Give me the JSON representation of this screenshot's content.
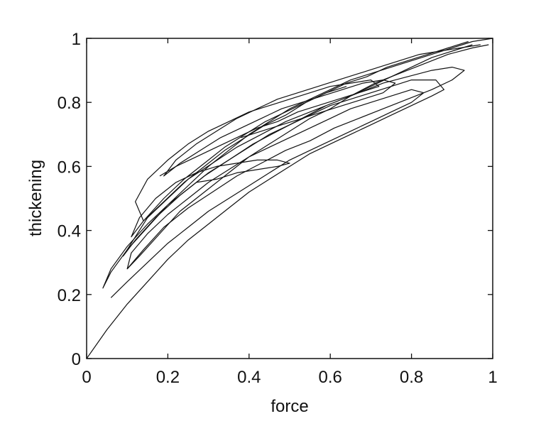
{
  "chart_data": {
    "type": "line",
    "title": "",
    "xlabel": "force",
    "ylabel": "thickening",
    "xlim": [
      0,
      1
    ],
    "ylim": [
      0,
      1
    ],
    "xticks": [
      0,
      0.2,
      0.4,
      0.6,
      0.8,
      1
    ],
    "yticks": [
      0,
      0.2,
      0.4,
      0.6,
      0.8,
      1
    ],
    "xtick_labels": [
      "0",
      "0.2",
      "0.4",
      "0.6",
      "0.8",
      "1"
    ],
    "ytick_labels": [
      "0",
      "0.2",
      "0.4",
      "0.6",
      "0.8",
      "1"
    ],
    "grid": false,
    "legend": "none",
    "line_color": "#111111",
    "series": [
      {
        "x": [
          0.0,
          0.05,
          0.1,
          0.15,
          0.2,
          0.25,
          0.3,
          0.35,
          0.4,
          0.45,
          0.5,
          0.55,
          0.6,
          0.65,
          0.7,
          0.75,
          0.8,
          0.85,
          0.88,
          0.86,
          0.8,
          0.75,
          0.7,
          0.65,
          0.6,
          0.55,
          0.5,
          0.45,
          0.4,
          0.35,
          0.3,
          0.25,
          0.2,
          0.15,
          0.1,
          0.06,
          0.04,
          0.06,
          0.1,
          0.15,
          0.2,
          0.25,
          0.3,
          0.35,
          0.4,
          0.45,
          0.5,
          0.55,
          0.6,
          0.65,
          0.7,
          0.75,
          0.8,
          0.85,
          0.9,
          0.95,
          1.0
        ],
        "y": [
          0.0,
          0.09,
          0.17,
          0.24,
          0.31,
          0.37,
          0.42,
          0.47,
          0.52,
          0.56,
          0.6,
          0.64,
          0.67,
          0.7,
          0.73,
          0.76,
          0.79,
          0.82,
          0.84,
          0.87,
          0.87,
          0.85,
          0.83,
          0.81,
          0.79,
          0.76,
          0.73,
          0.7,
          0.66,
          0.62,
          0.58,
          0.53,
          0.48,
          0.42,
          0.35,
          0.28,
          0.22,
          0.27,
          0.34,
          0.41,
          0.48,
          0.54,
          0.6,
          0.65,
          0.7,
          0.74,
          0.78,
          0.81,
          0.84,
          0.87,
          0.89,
          0.91,
          0.93,
          0.95,
          0.97,
          0.99,
          1.0
        ]
      },
      {
        "x": [
          0.06,
          0.1,
          0.15,
          0.2,
          0.25,
          0.3,
          0.35,
          0.4,
          0.45,
          0.5,
          0.55,
          0.6,
          0.65,
          0.7,
          0.75,
          0.8,
          0.83,
          0.8,
          0.75,
          0.7,
          0.65,
          0.6,
          0.55,
          0.5,
          0.45,
          0.4,
          0.35,
          0.3,
          0.25,
          0.2,
          0.15,
          0.11,
          0.1,
          0.13,
          0.18,
          0.23,
          0.3,
          0.35,
          0.4,
          0.45,
          0.5,
          0.55,
          0.6,
          0.65,
          0.7,
          0.75,
          0.8,
          0.85,
          0.9,
          0.95
        ],
        "y": [
          0.19,
          0.24,
          0.3,
          0.36,
          0.41,
          0.46,
          0.5,
          0.54,
          0.58,
          0.62,
          0.65,
          0.68,
          0.71,
          0.74,
          0.77,
          0.8,
          0.83,
          0.84,
          0.82,
          0.8,
          0.78,
          0.75,
          0.72,
          0.69,
          0.66,
          0.63,
          0.59,
          0.55,
          0.5,
          0.45,
          0.39,
          0.33,
          0.28,
          0.32,
          0.39,
          0.46,
          0.53,
          0.58,
          0.63,
          0.67,
          0.71,
          0.75,
          0.78,
          0.82,
          0.85,
          0.88,
          0.91,
          0.94,
          0.96,
          0.98
        ]
      },
      {
        "x": [
          0.1,
          0.14,
          0.19,
          0.25,
          0.31,
          0.37,
          0.43,
          0.49,
          0.55,
          0.61,
          0.67,
          0.73,
          0.79,
          0.85,
          0.9,
          0.93,
          0.9,
          0.85,
          0.79,
          0.73,
          0.67,
          0.61,
          0.55,
          0.49,
          0.43,
          0.37,
          0.31,
          0.25,
          0.2,
          0.15,
          0.12,
          0.09,
          0.12,
          0.17,
          0.23,
          0.29,
          0.35,
          0.41,
          0.47,
          0.53,
          0.59,
          0.65,
          0.71,
          0.77,
          0.83,
          0.89,
          0.95,
          0.99
        ],
        "y": [
          0.28,
          0.34,
          0.41,
          0.47,
          0.52,
          0.57,
          0.61,
          0.65,
          0.68,
          0.72,
          0.75,
          0.78,
          0.81,
          0.84,
          0.87,
          0.9,
          0.91,
          0.9,
          0.88,
          0.86,
          0.83,
          0.8,
          0.77,
          0.74,
          0.7,
          0.66,
          0.61,
          0.56,
          0.5,
          0.44,
          0.38,
          0.32,
          0.37,
          0.44,
          0.51,
          0.57,
          0.62,
          0.67,
          0.71,
          0.75,
          0.79,
          0.82,
          0.86,
          0.89,
          0.92,
          0.95,
          0.97,
          0.98
        ]
      },
      {
        "x": [
          0.18,
          0.22,
          0.27,
          0.32,
          0.37,
          0.42,
          0.47,
          0.52,
          0.57,
          0.62,
          0.67,
          0.72,
          0.7,
          0.65,
          0.6,
          0.55,
          0.5,
          0.45,
          0.4,
          0.35,
          0.3,
          0.25,
          0.2,
          0.15,
          0.12,
          0.14,
          0.19,
          0.24,
          0.29,
          0.34,
          0.39,
          0.44,
          0.49,
          0.54,
          0.59,
          0.64,
          0.69,
          0.74,
          0.79,
          0.84,
          0.89,
          0.94
        ],
        "y": [
          0.57,
          0.6,
          0.63,
          0.66,
          0.69,
          0.72,
          0.74,
          0.77,
          0.79,
          0.81,
          0.83,
          0.85,
          0.87,
          0.86,
          0.85,
          0.83,
          0.81,
          0.79,
          0.77,
          0.74,
          0.71,
          0.67,
          0.62,
          0.56,
          0.49,
          0.43,
          0.49,
          0.55,
          0.6,
          0.65,
          0.69,
          0.73,
          0.76,
          0.8,
          0.83,
          0.86,
          0.88,
          0.91,
          0.93,
          0.95,
          0.97,
          0.99
        ]
      },
      {
        "x": [
          0.27,
          0.32,
          0.37,
          0.42,
          0.47,
          0.5,
          0.47,
          0.42,
          0.37,
          0.32,
          0.27,
          0.22,
          0.17,
          0.13,
          0.11,
          0.14,
          0.19,
          0.24,
          0.29,
          0.34,
          0.39,
          0.44,
          0.49,
          0.54,
          0.59,
          0.64
        ],
        "y": [
          0.55,
          0.56,
          0.58,
          0.59,
          0.6,
          0.61,
          0.62,
          0.62,
          0.61,
          0.6,
          0.58,
          0.55,
          0.5,
          0.44,
          0.38,
          0.43,
          0.5,
          0.56,
          0.61,
          0.66,
          0.7,
          0.74,
          0.77,
          0.8,
          0.83,
          0.85
        ]
      },
      {
        "x": [
          0.38,
          0.43,
          0.48,
          0.53,
          0.58,
          0.63,
          0.68,
          0.73,
          0.76,
          0.73,
          0.68,
          0.63,
          0.58,
          0.53,
          0.48,
          0.43,
          0.38,
          0.33,
          0.28,
          0.23,
          0.19,
          0.22,
          0.27,
          0.32,
          0.37,
          0.42,
          0.47,
          0.52,
          0.57,
          0.62,
          0.67,
          0.72,
          0.77,
          0.82,
          0.87,
          0.92,
          0.97
        ],
        "y": [
          0.69,
          0.71,
          0.73,
          0.75,
          0.77,
          0.79,
          0.81,
          0.83,
          0.86,
          0.87,
          0.86,
          0.84,
          0.82,
          0.8,
          0.78,
          0.75,
          0.72,
          0.69,
          0.65,
          0.61,
          0.57,
          0.62,
          0.67,
          0.71,
          0.75,
          0.78,
          0.81,
          0.83,
          0.85,
          0.87,
          0.89,
          0.91,
          0.93,
          0.95,
          0.96,
          0.97,
          0.98
        ]
      }
    ]
  }
}
